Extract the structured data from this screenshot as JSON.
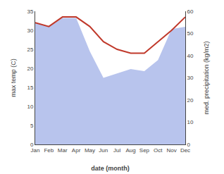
{
  "chart_data": {
    "type": "line",
    "categories": [
      "Jan",
      "Feb",
      "Mar",
      "Apr",
      "May",
      "Jun",
      "Jul",
      "Aug",
      "Sep",
      "Oct",
      "Nov",
      "Dec"
    ],
    "series": [
      {
        "type": "line",
        "color": "#c0392b",
        "values": [
          32.0,
          31.0,
          33.5,
          33.5,
          31.0,
          27.0,
          25.0,
          24.0,
          24.0,
          27.0,
          30.0,
          33.5
        ]
      },
      {
        "type": "area",
        "axis": "y2",
        "color": "#b8c4ed",
        "values": [
          55.0,
          53.0,
          57.0,
          57.0,
          42.0,
          30.0,
          32.0,
          34.0,
          33.0,
          38.0,
          52.0,
          53.0
        ]
      }
    ],
    "xlabel": "date (month)",
    "ylabel": "max temp (C)",
    "y2label": "med. precipitation (kg/m2)",
    "ylim": [
      0,
      35
    ],
    "yticks": [
      0,
      5,
      10,
      15,
      20,
      25,
      30,
      35
    ],
    "y2lim": [
      0,
      60
    ],
    "y2ticks": [
      0,
      10,
      20,
      30,
      40,
      50,
      60
    ],
    "grid": false
  }
}
